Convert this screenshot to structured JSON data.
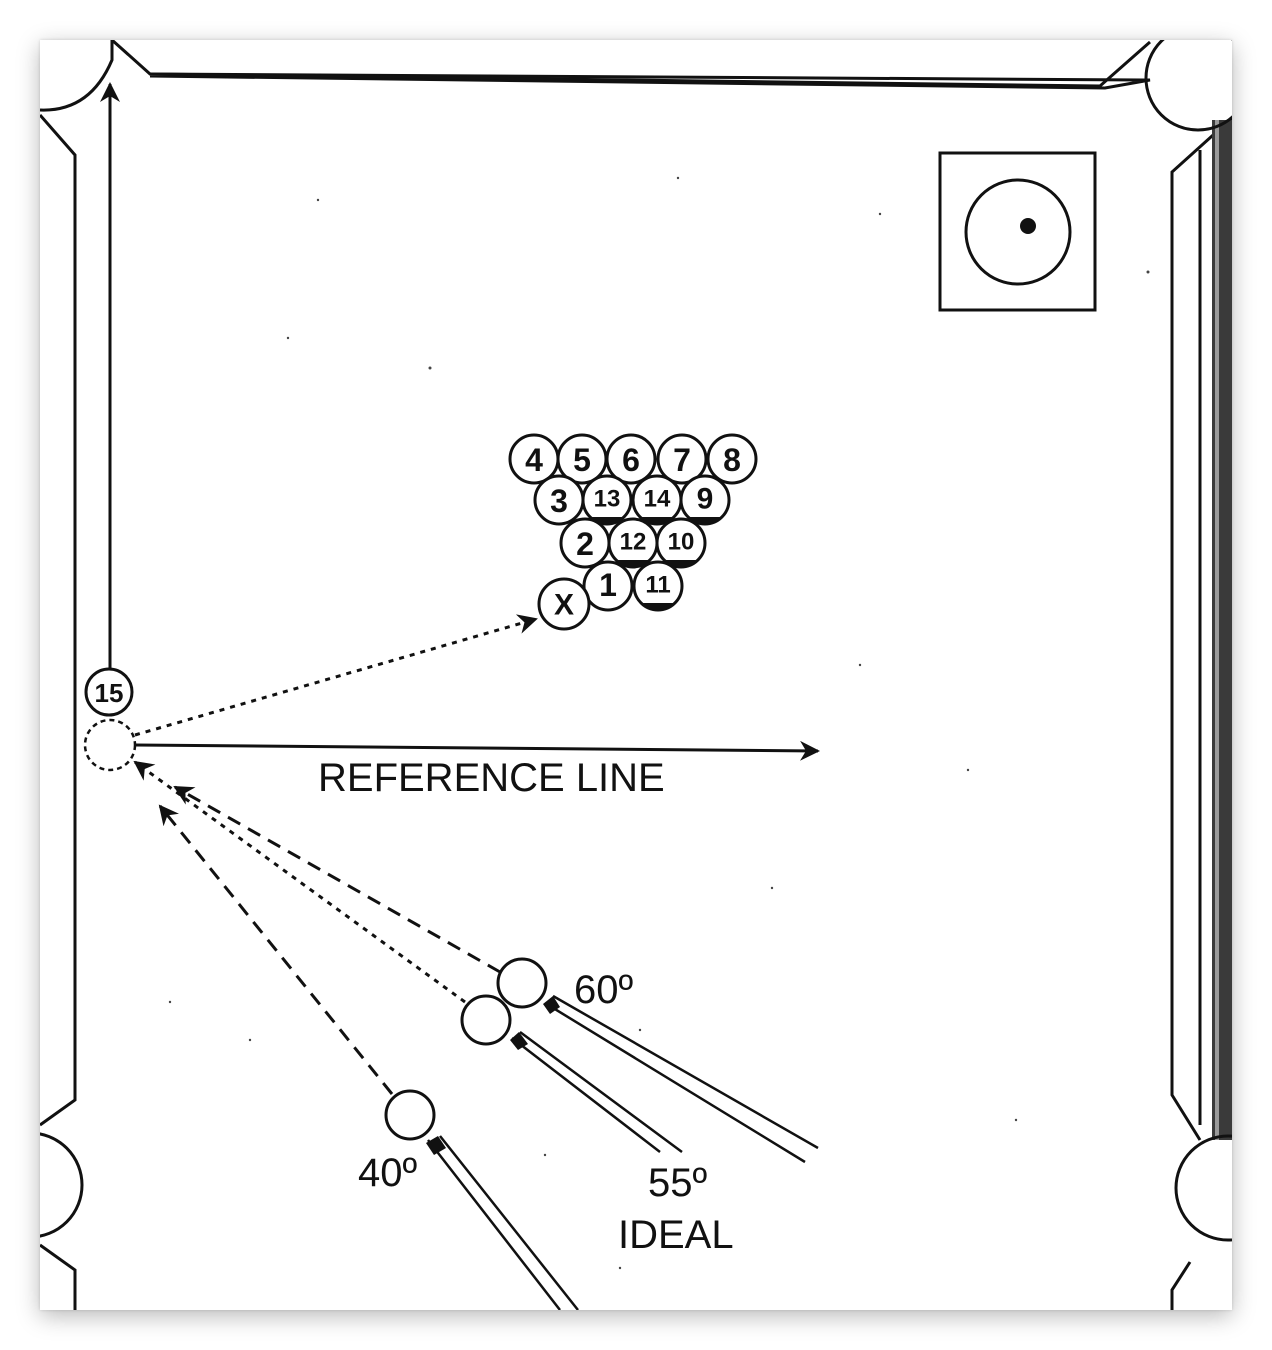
{
  "diagram": {
    "reference_line_label": "REFERENCE LINE",
    "angles": {
      "a40": "40º",
      "a55": "55º",
      "a55_note": "IDEAL",
      "a60": "60º"
    },
    "object_ball": "15",
    "cue_target": "X",
    "rack_rows": [
      [
        "4",
        "5",
        "6",
        "7",
        "8"
      ],
      [
        "3",
        "13",
        "14",
        "9"
      ],
      [
        "2",
        "12",
        "10"
      ],
      [
        "1",
        "11"
      ]
    ]
  }
}
